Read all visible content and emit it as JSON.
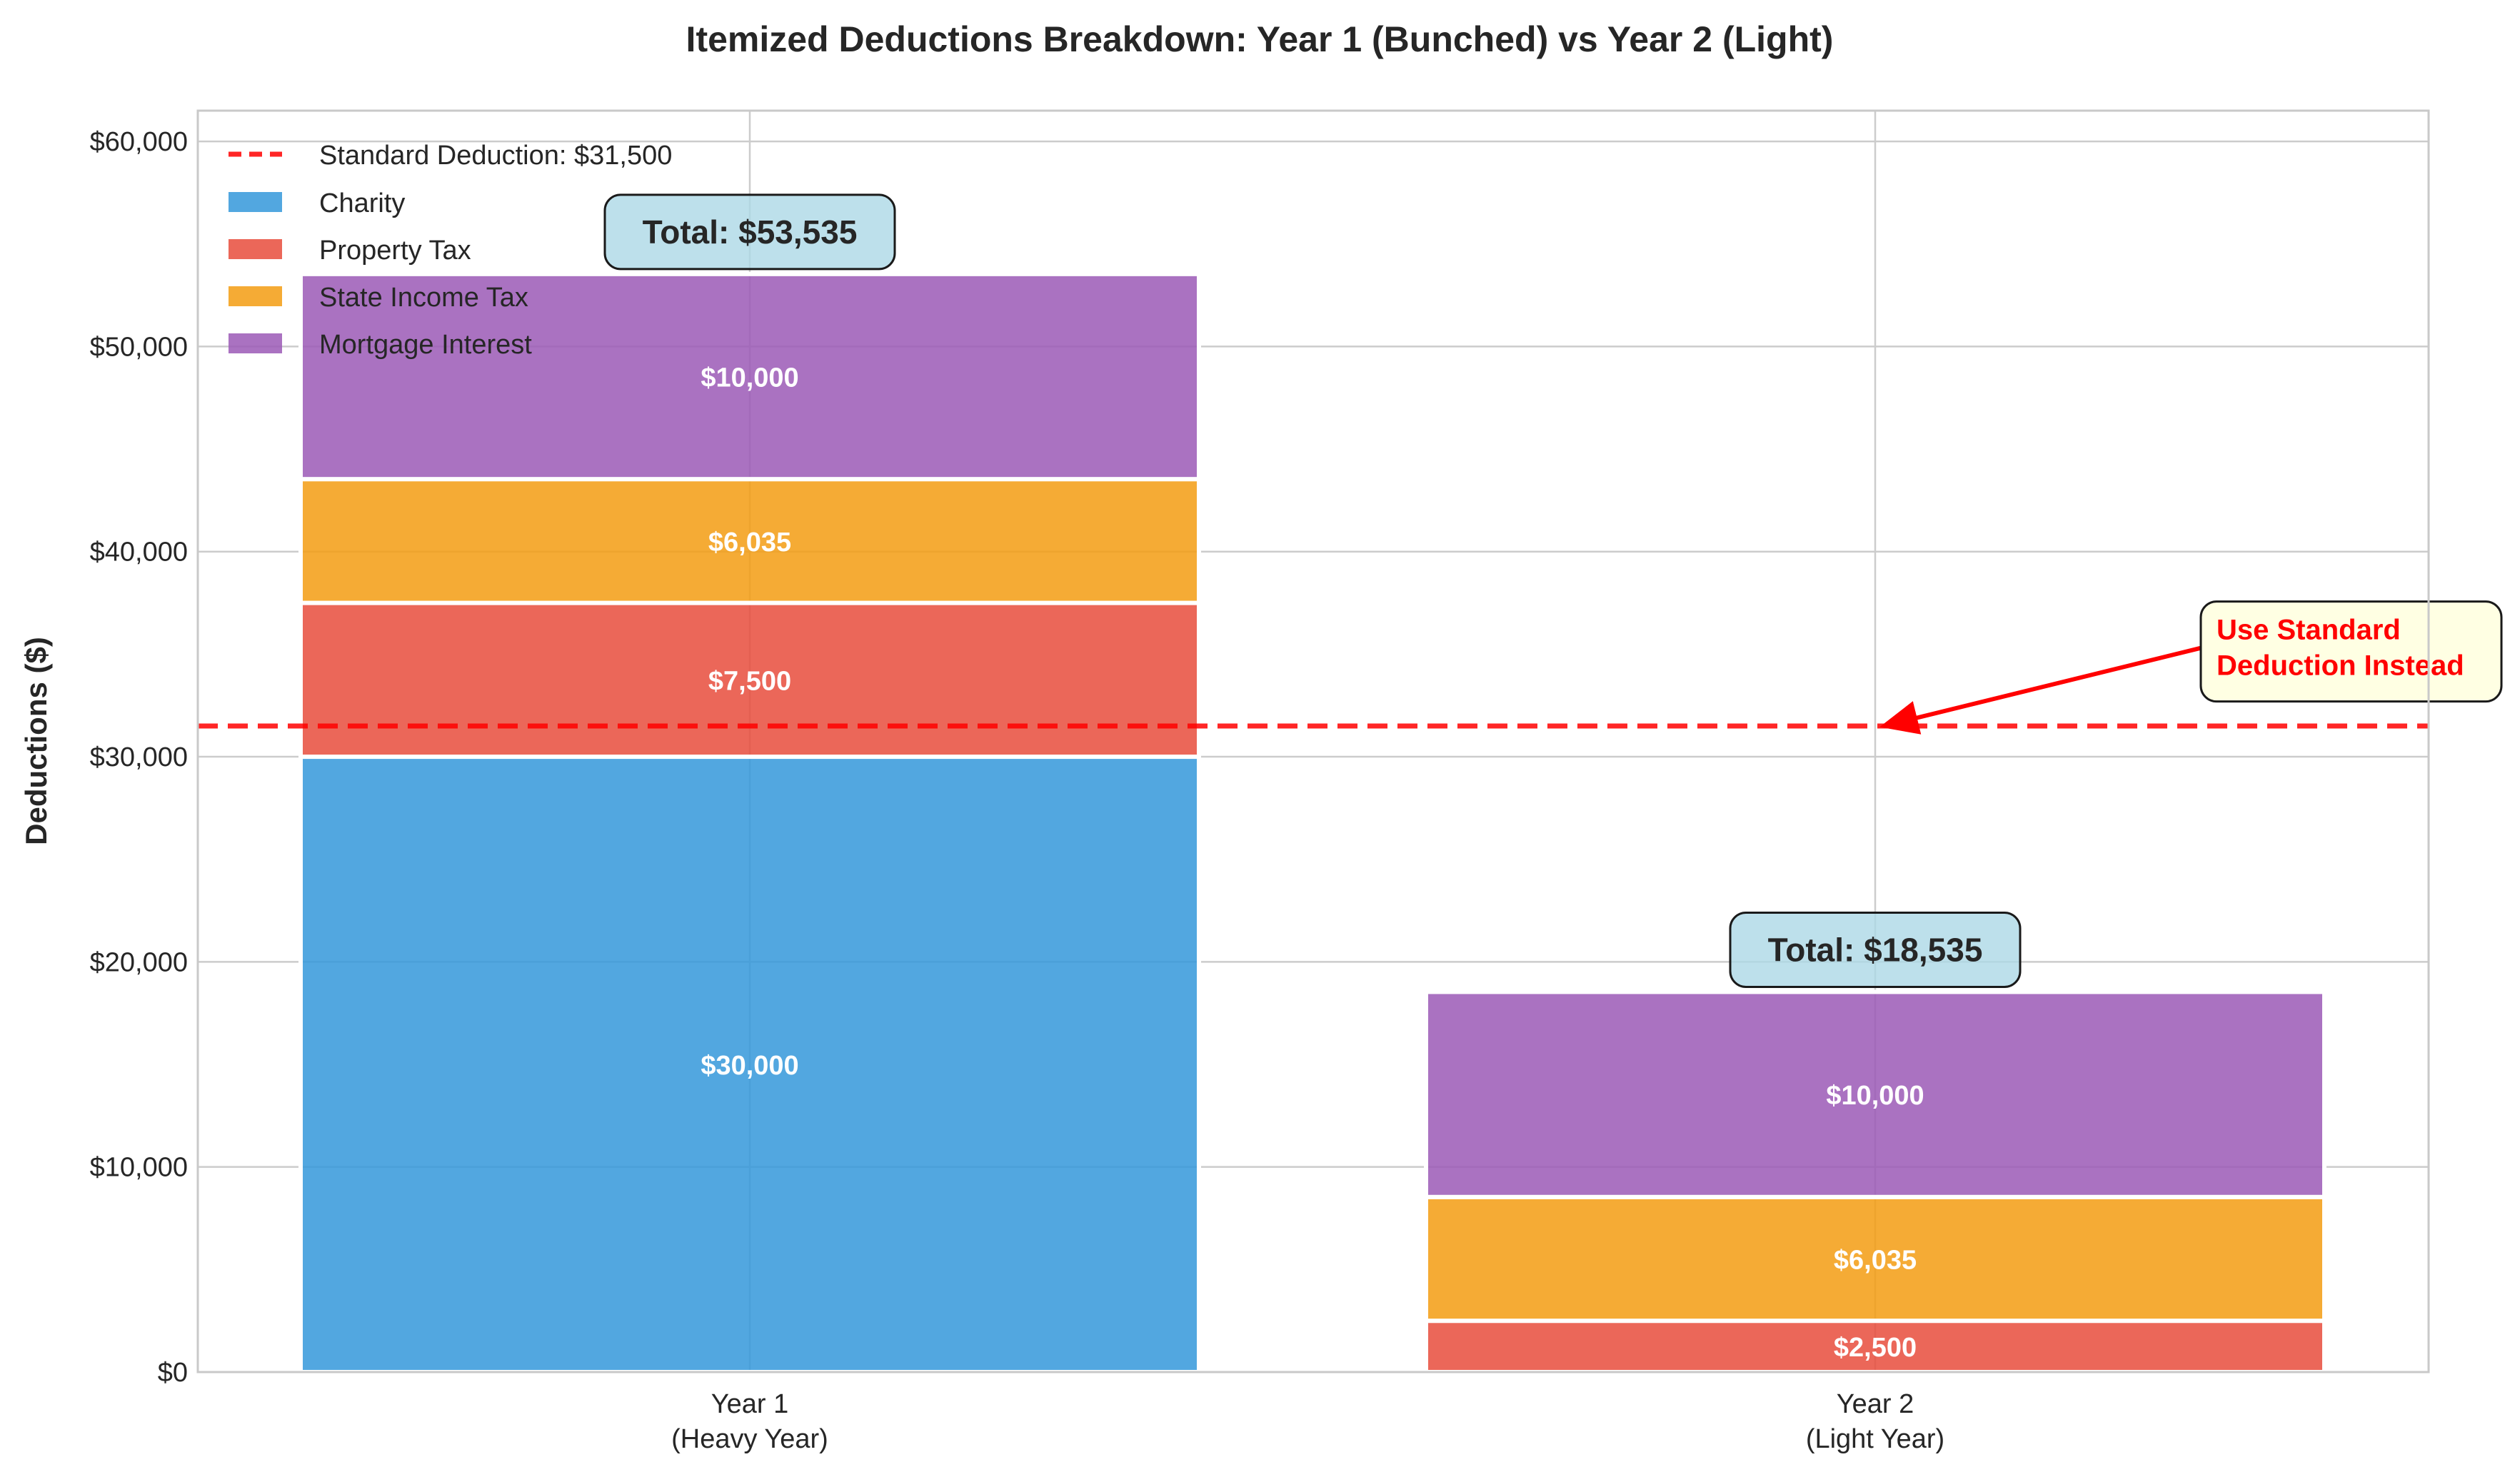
{
  "chart_data": {
    "type": "bar",
    "stacked": true,
    "title": "Itemized Deductions Breakdown: Year 1 (Bunched) vs Year 2 (Light)",
    "xlabel": "",
    "ylabel": "Deductions ($)",
    "ylim": [
      0,
      61500
    ],
    "yticks": [
      {
        "value": 0,
        "label": "$0"
      },
      {
        "value": 10000,
        "label": "$10,000"
      },
      {
        "value": 20000,
        "label": "$20,000"
      },
      {
        "value": 30000,
        "label": "$30,000"
      },
      {
        "value": 40000,
        "label": "$40,000"
      },
      {
        "value": 50000,
        "label": "$50,000"
      },
      {
        "value": 60000,
        "label": "$60,000"
      }
    ],
    "categories": [
      {
        "line1": "Year 1",
        "line2": "(Heavy Year)"
      },
      {
        "line1": "Year 2",
        "line2": "(Light Year)"
      }
    ],
    "series": [
      {
        "name": "Charity",
        "color": "#3498db",
        "values": [
          30000,
          0
        ],
        "labels": [
          "$30,000",
          ""
        ]
      },
      {
        "name": "Property Tax",
        "color": "#e74c3c",
        "values": [
          7500,
          2500
        ],
        "labels": [
          "$7,500",
          "$2,500"
        ]
      },
      {
        "name": "State Income Tax",
        "color": "#f39c12",
        "values": [
          6035,
          6035
        ],
        "labels": [
          "$6,035",
          "$6,035"
        ]
      },
      {
        "name": "Mortgage Interest",
        "color": "#9b59b6",
        "values": [
          10000,
          10000
        ],
        "labels": [
          "$10,000",
          "$10,000"
        ]
      }
    ],
    "totals": [
      "Total: $53,535",
      "Total: $18,535"
    ],
    "total_values": [
      53535,
      18535
    ],
    "reference_line": {
      "value": 31500,
      "label": "Standard Deduction: $31,500",
      "color": "#ff0000"
    },
    "annotation": {
      "lines": [
        "Use Standard",
        "Deduction Instead"
      ],
      "target_category": 1,
      "target_value": 31500,
      "text_value": 36000,
      "color": "#ff0000"
    },
    "legend_position": "upper-left",
    "grid": true
  }
}
